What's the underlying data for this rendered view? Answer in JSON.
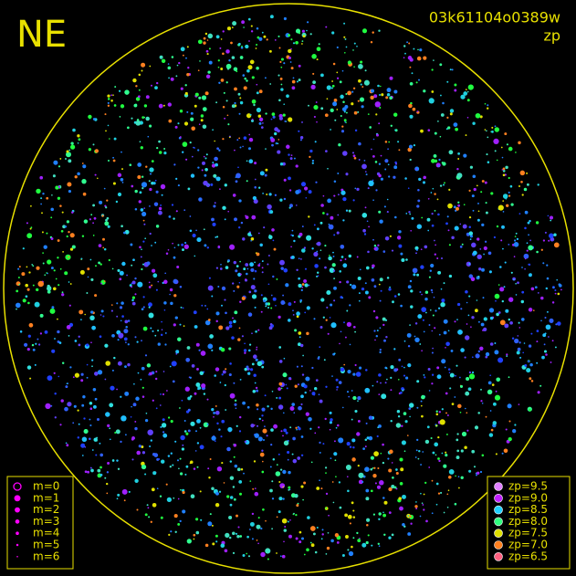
{
  "header": {
    "title": "NE",
    "image_id": "03k61104o0389w",
    "subtitle": "zp"
  },
  "magnitude_legend": {
    "color": "#ff00ff",
    "items": [
      "m=0",
      "m=1",
      "m=2",
      "m=3",
      "m=4",
      "m=5",
      "m=6"
    ]
  },
  "zp_legend": {
    "items": [
      {
        "label": "zp=9.5",
        "color": "#e080ff"
      },
      {
        "label": "zp=9.0",
        "color": "#c020ff"
      },
      {
        "label": "zp=8.5",
        "color": "#20d0ff"
      },
      {
        "label": "zp=8.0",
        "color": "#30ff80"
      },
      {
        "label": "zp=7.5",
        "color": "#e0e000"
      },
      {
        "label": "zp=7.0",
        "color": "#ff8020"
      },
      {
        "label": "zp=6.5",
        "color": "#ff6080"
      }
    ]
  }
}
